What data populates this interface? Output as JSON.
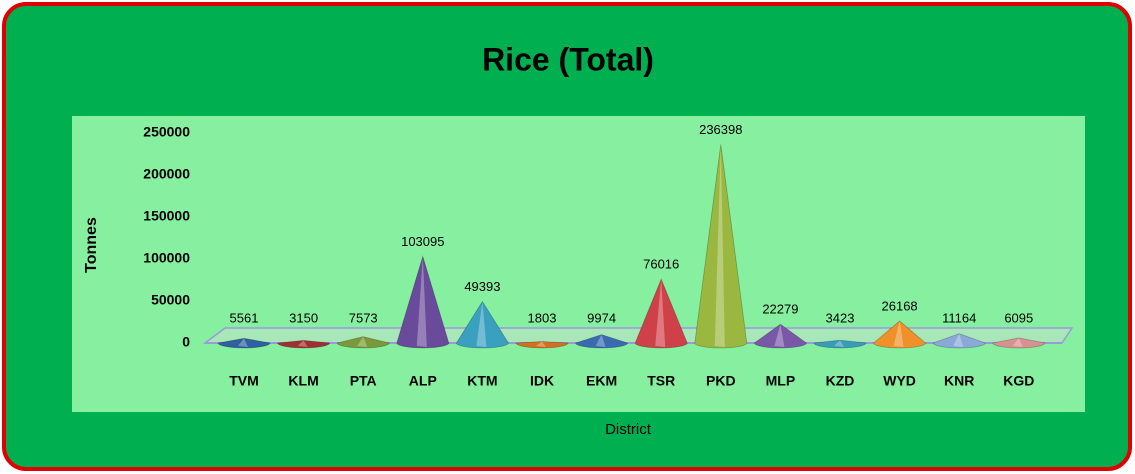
{
  "chart_data": {
    "type": "bar",
    "title": "Rice (Total)",
    "x_label": "District",
    "y_label": "Tonnes",
    "categories": [
      "TVM",
      "KLM",
      "PTA",
      "ALP",
      "KTM",
      "IDK",
      "EKM",
      "TSR",
      "PKD",
      "MLP",
      "KZD",
      "WYD",
      "KNR",
      "KGD"
    ],
    "values": [
      5561,
      3150,
      7573,
      103095,
      49393,
      1803,
      9974,
      76016,
      236398,
      22279,
      3423,
      26168,
      11164,
      6095
    ],
    "colors": [
      "#2e5f9e",
      "#9e3030",
      "#7a9a3a",
      "#6a4a9a",
      "#3aa0c0",
      "#d07020",
      "#3a6ab0",
      "#d04048",
      "#9ab840",
      "#7a58a8",
      "#3a9ab8",
      "#f0902a",
      "#8aa8d8",
      "#d89090"
    ],
    "ylim": [
      0,
      250000
    ],
    "yticks": [
      0,
      50000,
      100000,
      150000,
      200000,
      250000
    ]
  }
}
